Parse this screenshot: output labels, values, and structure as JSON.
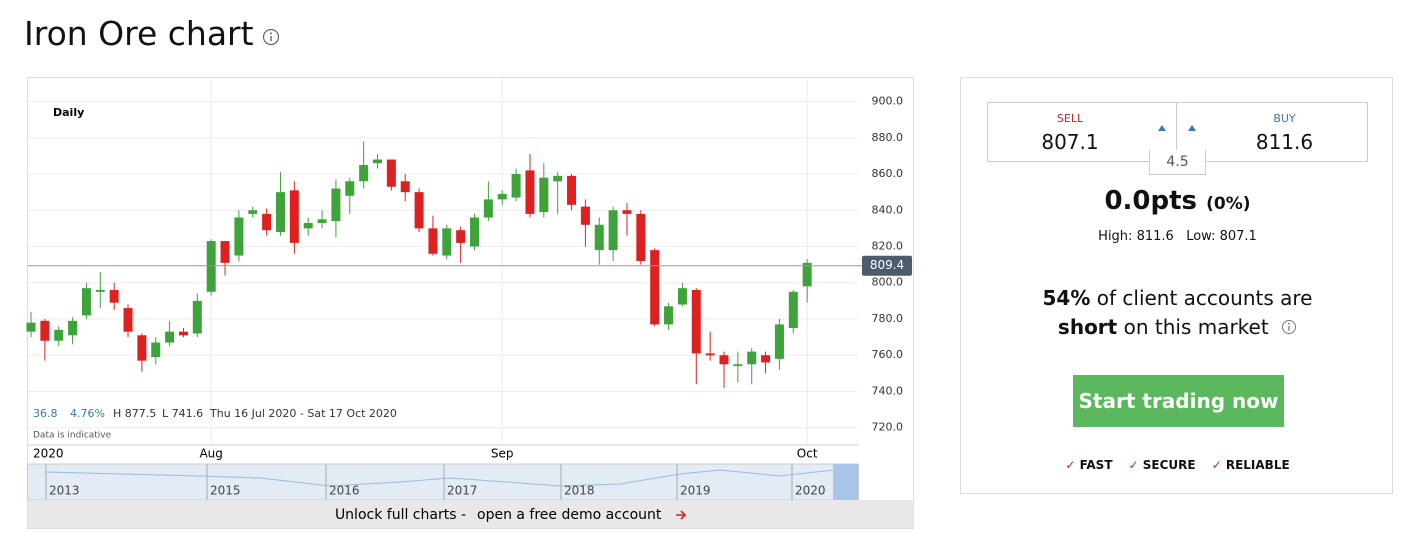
{
  "header": {
    "title": "Iron Ore chart"
  },
  "chart_data": {
    "type": "candlestick",
    "interval": "Daily",
    "categories": [
      "2020",
      null,
      null,
      null,
      null,
      null,
      null,
      null,
      null,
      null,
      null,
      null,
      null,
      "Aug",
      null,
      null,
      null,
      null,
      null,
      null,
      null,
      null,
      null,
      null,
      null,
      null,
      null,
      null,
      null,
      null,
      null,
      null,
      null,
      null,
      "Sep",
      null,
      null,
      null,
      null,
      null,
      null,
      null,
      null,
      null,
      null,
      null,
      null,
      null,
      null,
      null,
      null,
      null,
      null,
      null,
      null,
      null,
      "Oct"
    ],
    "open": [
      773,
      779,
      768,
      771,
      782,
      795,
      796,
      786,
      771,
      759,
      767,
      773,
      772,
      795,
      823,
      815,
      838,
      838,
      828,
      851,
      830,
      833,
      834,
      848,
      856,
      866,
      868,
      856,
      850,
      830,
      815,
      829,
      820,
      836,
      846,
      847,
      862,
      839,
      856,
      859,
      842,
      818,
      818,
      840,
      838,
      818,
      777,
      788,
      796,
      761,
      760,
      754,
      755,
      760,
      758,
      775,
      798
    ],
    "high": [
      784,
      780,
      776,
      781,
      800,
      806,
      800,
      788,
      772,
      770,
      779,
      775,
      794,
      824,
      823,
      840,
      842,
      841,
      861,
      856,
      836,
      840,
      857,
      858,
      878,
      871,
      868,
      860,
      852,
      837,
      832,
      831,
      838,
      856,
      851,
      863,
      871,
      866,
      861,
      860,
      846,
      836,
      842,
      844,
      840,
      819,
      789,
      800,
      797,
      773,
      762,
      762,
      764,
      762,
      780,
      796,
      813
    ],
    "low": [
      770,
      757,
      765,
      766,
      780,
      786,
      785,
      770,
      751,
      755,
      765,
      770,
      770,
      793,
      804,
      812,
      836,
      826,
      826,
      816,
      826,
      830,
      825,
      838,
      852,
      863,
      851,
      845,
      828,
      815,
      813,
      811,
      818,
      834,
      843,
      845,
      836,
      836,
      838,
      840,
      820,
      810,
      812,
      826,
      810,
      776,
      774,
      787,
      744,
      757,
      742,
      745,
      744,
      750,
      752,
      772,
      789
    ],
    "close": [
      778,
      768,
      774,
      779,
      797,
      796,
      789,
      773,
      757,
      767,
      773,
      771,
      790,
      823,
      811,
      836,
      840,
      829,
      850,
      822,
      833,
      835,
      852,
      856,
      865,
      868,
      853,
      850,
      830,
      816,
      830,
      822,
      836,
      846,
      849,
      860,
      838,
      858,
      859,
      843,
      832,
      832,
      840,
      838,
      812,
      777,
      787,
      797,
      761,
      760,
      755,
      755,
      762,
      756,
      777,
      795,
      811
    ],
    "up_color": "#3ea33a",
    "down_color": "#dd2020",
    "ylim": [
      711,
      913
    ],
    "yticks": [
      {
        "value": 720,
        "label": "720.0"
      },
      {
        "value": 740,
        "label": "740.0"
      },
      {
        "value": 760,
        "label": "760.0"
      },
      {
        "value": 780,
        "label": "780.0"
      },
      {
        "value": 800,
        "label": "800.0"
      },
      {
        "value": 820,
        "label": "820.0"
      },
      {
        "value": 840,
        "label": "840.0"
      },
      {
        "value": 860,
        "label": "860.0"
      },
      {
        "value": 880,
        "label": "880.0"
      },
      {
        "value": 900,
        "label": "900.0"
      }
    ],
    "grid": true,
    "last_price": 809.4,
    "stats": {
      "change": "36.8",
      "change_pct": "4.76%",
      "high": "H 877.5",
      "low": "L 741.6",
      "range": "Thu 16 Jul 2020 - Sat 17 Oct 2020"
    },
    "note": "Data is indicative",
    "navigator_years": [
      "2013",
      "2015",
      "2016",
      "2017",
      "2018",
      "2019",
      "2020"
    ]
  },
  "unlock": {
    "text": "Unlock full charts -",
    "link": "open a free demo account"
  },
  "ticket": {
    "sell_label": "SELL",
    "sell": "807.1",
    "buy_label": "BUY",
    "buy": "811.6",
    "spread": "4.5",
    "change": "0.0pts",
    "change_pct": "(0%)",
    "high": "High: 811.6",
    "low": "Low: 807.1"
  },
  "sentiment": {
    "pct": "54%",
    "line1": "of client accounts are",
    "position": "short",
    "line2": "on this market"
  },
  "cta": "Start trading now",
  "features": [
    "FAST",
    "SECURE",
    "RELIABLE"
  ]
}
